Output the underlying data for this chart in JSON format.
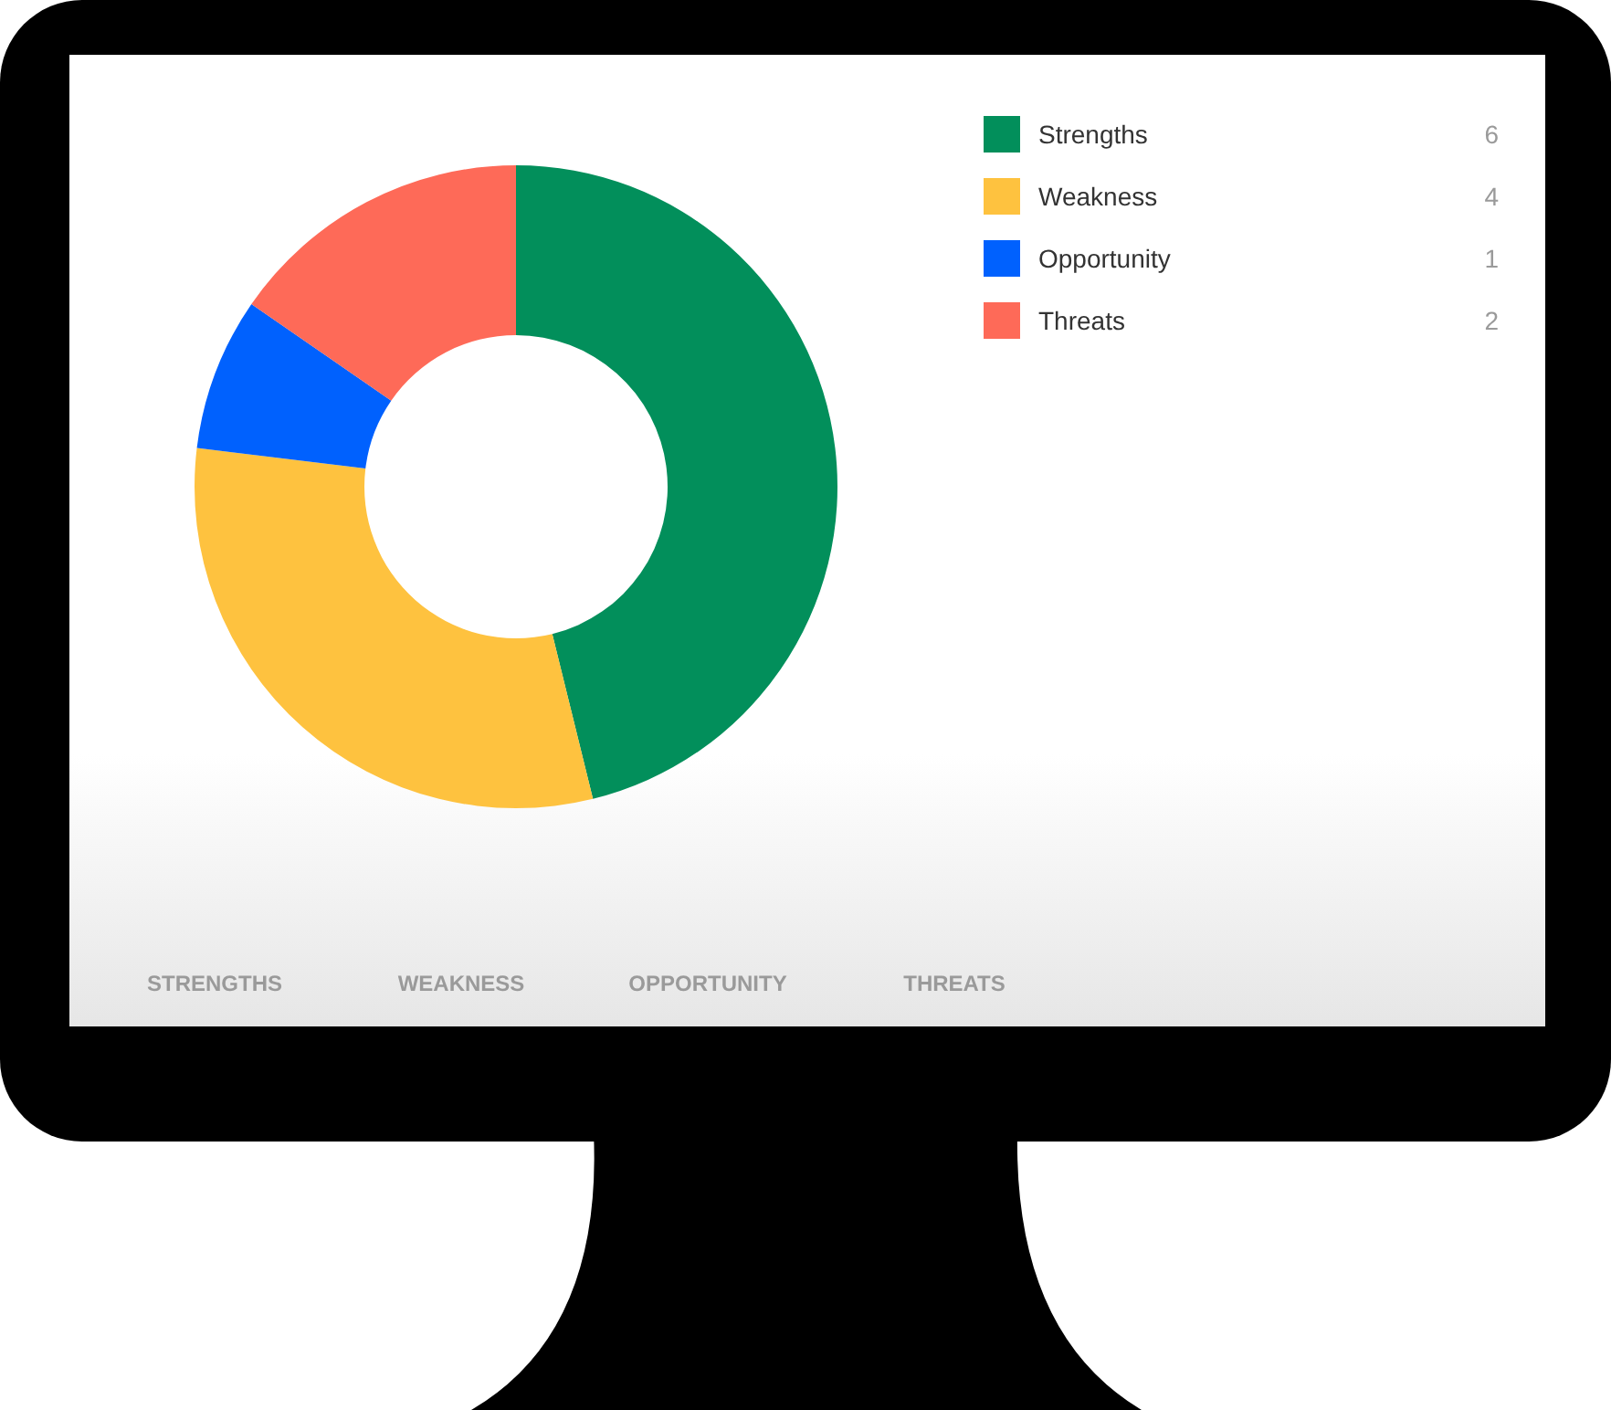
{
  "chart_data": {
    "type": "donut",
    "categories": [
      "Strengths",
      "Weakness",
      "Opportunity",
      "Threats"
    ],
    "values": [
      6,
      4,
      1,
      2
    ],
    "colors": [
      "#028f5b",
      "#fec23f",
      "#0061fe",
      "#fe6a58"
    ],
    "data_labels": true,
    "legend": "top right",
    "annotations": [
      "STRENGTHS",
      "WEAKNESS",
      "OPPORTUNITY",
      "THREATS"
    ]
  }
}
